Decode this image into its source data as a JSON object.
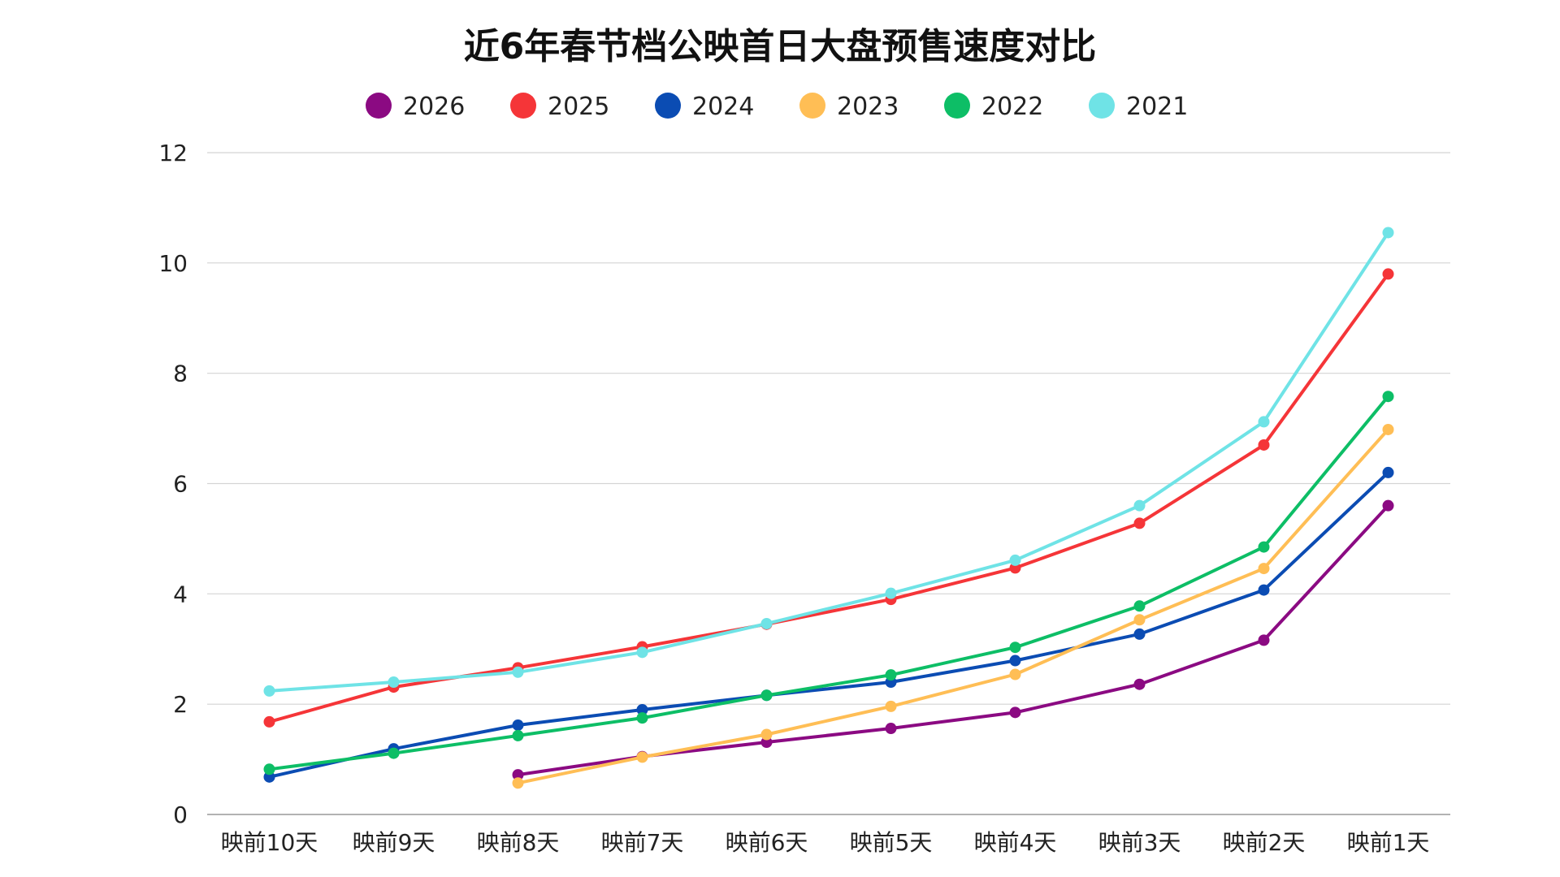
{
  "chart_data": {
    "type": "line",
    "title": "近6年春节档公映首日大盘预售速度对比",
    "xlabel": "",
    "ylabel": "",
    "ylim": [
      0,
      12
    ],
    "yticks": [
      0,
      2,
      4,
      6,
      8,
      10,
      12
    ],
    "grid": true,
    "legend": "top-center",
    "categories": [
      "映前10天",
      "映前9天",
      "映前8天",
      "映前7天",
      "映前6天",
      "映前5天",
      "映前4天",
      "映前3天",
      "映前2天",
      "映前1天"
    ],
    "series": [
      {
        "name": "2026",
        "color": "#8B0A82",
        "values": [
          null,
          null,
          0.72,
          1.05,
          1.31,
          1.56,
          1.85,
          2.36,
          3.16,
          5.6
        ]
      },
      {
        "name": "2025",
        "color": "#F53538",
        "values": [
          1.68,
          2.31,
          2.66,
          3.04,
          3.45,
          3.9,
          4.47,
          5.28,
          6.7,
          9.8
        ]
      },
      {
        "name": "2024",
        "color": "#0B4CB3",
        "values": [
          0.68,
          1.19,
          1.62,
          1.9,
          2.16,
          2.4,
          2.79,
          3.27,
          4.07,
          6.2
        ]
      },
      {
        "name": "2023",
        "color": "#FFBE55",
        "values": [
          null,
          null,
          0.57,
          1.04,
          1.45,
          1.96,
          2.54,
          3.53,
          4.46,
          6.98
        ]
      },
      {
        "name": "2022",
        "color": "#0DBE66",
        "values": [
          0.82,
          1.11,
          1.43,
          1.75,
          2.16,
          2.53,
          3.03,
          3.78,
          4.85,
          7.58
        ]
      },
      {
        "name": "2021",
        "color": "#6FE3E6",
        "values": [
          2.24,
          2.4,
          2.58,
          2.94,
          3.46,
          4.01,
          4.61,
          5.6,
          7.12,
          10.55
        ]
      }
    ]
  }
}
